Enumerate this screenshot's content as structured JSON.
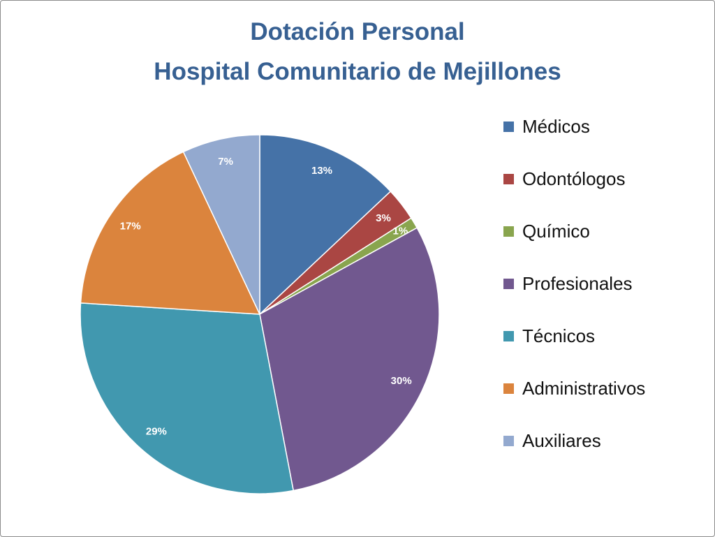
{
  "chart_data": {
    "type": "pie",
    "title": "Dotación Personal\nHospital Comunitario de Mejillones",
    "categories": [
      "Médicos",
      "Odontólogos",
      "Químico",
      "Profesionales",
      "Técnicos",
      "Administrativos",
      "Auxiliares"
    ],
    "values": [
      13,
      3,
      1,
      30,
      29,
      17,
      7
    ],
    "data_labels": [
      "13%",
      "3%",
      "1%",
      "30%",
      "29%",
      "17%",
      "7%"
    ],
    "colors": [
      "#4572A7",
      "#AA4643",
      "#89A54E",
      "#71588F",
      "#4198AF",
      "#DB843D",
      "#93A9CF"
    ],
    "title_color": "#376092",
    "legend": {
      "position": "right"
    },
    "direction": "clockwise from top"
  }
}
